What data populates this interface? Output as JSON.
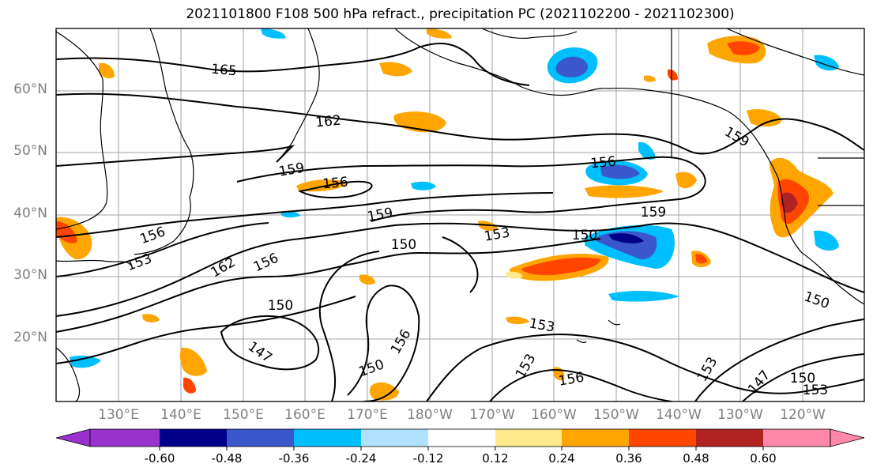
{
  "title": "2021101800 F108 500 hPa refract., precipitation PC (2021102200 - 2021102300)",
  "lat_labels": [
    "60°N",
    "50°N",
    "40°N",
    "30°N",
    "20°N"
  ],
  "lon_labels": [
    "130°E",
    "140°E",
    "150°E",
    "160°E",
    "170°E",
    "180°W",
    "170°W",
    "160°W",
    "150°W",
    "140°W",
    "130°W",
    "120°W"
  ],
  "contour_labels": [
    "165",
    "162",
    "159",
    "156",
    "159",
    "156",
    "150",
    "153",
    "156",
    "162",
    "156",
    "153",
    "150",
    "147",
    "156",
    "150",
    "159",
    "153",
    "156",
    "150",
    "159",
    "153",
    "153",
    "147",
    "150",
    "153",
    "150"
  ],
  "colorbar": {
    "ticks": [
      "-0.60",
      "-0.48",
      "-0.36",
      "-0.24",
      "-0.12",
      "0.12",
      "0.24",
      "0.36",
      "0.48",
      "0.60"
    ],
    "colors": [
      "#9932cc",
      "#00008b",
      "#3a57cc",
      "#00bfff",
      "#b0e2ff",
      "#ffffff",
      "#ffe98a",
      "#ffa500",
      "#ff4500",
      "#b22222",
      "#ff88aa"
    ]
  }
}
